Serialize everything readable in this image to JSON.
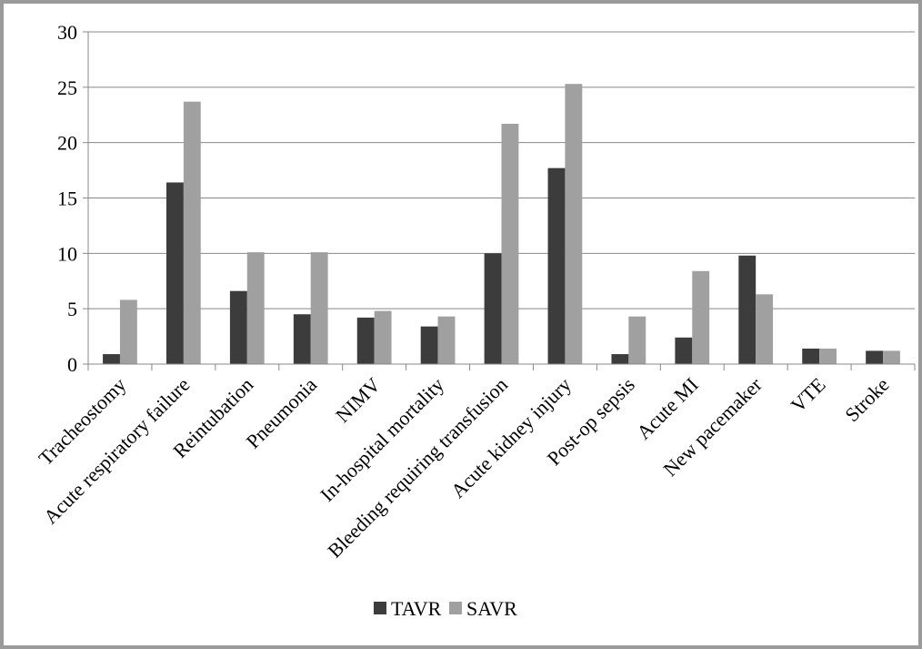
{
  "chart_data": {
    "type": "bar",
    "title": "",
    "xlabel": "",
    "ylabel": "",
    "ylim": [
      0,
      30
    ],
    "yticks": [
      0,
      5,
      10,
      15,
      20,
      25,
      30
    ],
    "grid": "horizontal",
    "legend_position": "bottom",
    "categories": [
      "Tracheostomy",
      "Acute respiratory failure",
      "Reintubation",
      "Pneumonia",
      "NIMV",
      "In-hospital mortality",
      "Bleeding requiring transfusion",
      "Acute kidney injury",
      "Post-op sepsis",
      "Acute MI",
      "New pacemaker",
      "VTE",
      "Stroke"
    ],
    "series": [
      {
        "name": "TAVR",
        "color": "#3c3c3c",
        "values": [
          0.9,
          16.4,
          6.6,
          4.5,
          4.2,
          3.4,
          10.0,
          17.7,
          0.9,
          2.4,
          9.8,
          1.4,
          1.2
        ]
      },
      {
        "name": "SAVR",
        "color": "#a0a0a0",
        "values": [
          5.8,
          23.7,
          10.1,
          10.1,
          4.8,
          4.3,
          21.7,
          25.3,
          4.3,
          8.4,
          6.3,
          1.4,
          1.2
        ]
      }
    ]
  }
}
